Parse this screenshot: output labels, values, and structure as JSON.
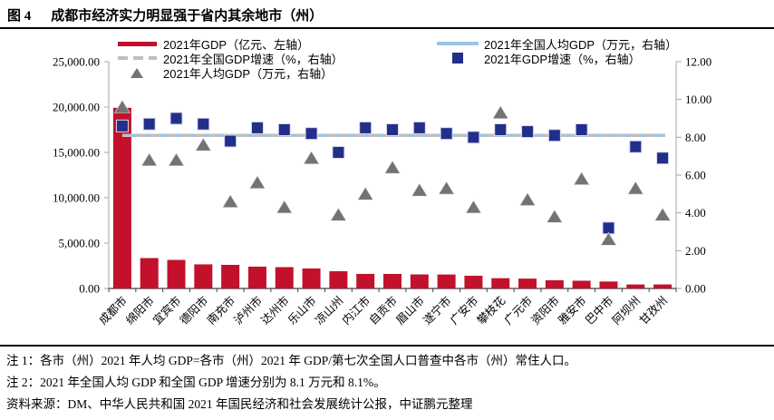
{
  "header": {
    "figure_label": "图 4",
    "title": "成都市经济实力明显强于省内其余地市（州）"
  },
  "chart_data": {
    "type": "combo",
    "categories": [
      "成都市",
      "绵阳市",
      "宜宾市",
      "德阳市",
      "南充市",
      "泸州市",
      "达州市",
      "乐山市",
      "凉山州",
      "内江市",
      "自贡市",
      "眉山市",
      "遂宁市",
      "广安市",
      "攀枝花",
      "广元市",
      "资阳市",
      "雅安市",
      "巴中市",
      "阿坝州",
      "甘孜州"
    ],
    "series": [
      {
        "name": "2021年GDP（亿元、左轴）",
        "type": "bar",
        "axis": "left",
        "color": "#C3112B",
        "values": [
          19917,
          3350,
          3148,
          2657,
          2602,
          2406,
          2352,
          2205,
          1901,
          1605,
          1601,
          1547,
          1539,
          1401,
          1133,
          1086,
          903,
          852,
          766,
          441,
          443
        ]
      },
      {
        "name": "2021年全国GDP增速（%，右轴）",
        "type": "line-dashed",
        "axis": "right",
        "color": "#BFBFBF",
        "value": 8.1
      },
      {
        "name": "2021年人均GDP（万元，右轴）",
        "type": "scatter-triangle",
        "axis": "right",
        "color": "#737373",
        "values": [
          9.6,
          6.8,
          6.8,
          7.6,
          4.6,
          5.6,
          4.3,
          6.9,
          3.9,
          5.0,
          6.4,
          5.2,
          5.3,
          4.3,
          9.3,
          4.7,
          3.8,
          5.8,
          2.6,
          5.3,
          3.9
        ]
      },
      {
        "name": "2021年全国人均GDP（万元，右轴）",
        "type": "line",
        "axis": "right",
        "color": "#9DC3E6",
        "value": 8.1
      },
      {
        "name": "2021年GDP增速（%，右轴）",
        "type": "scatter-square",
        "axis": "right",
        "color": "#232E8B",
        "values": [
          8.6,
          8.7,
          9.0,
          8.7,
          7.8,
          8.5,
          8.4,
          8.2,
          7.2,
          8.5,
          8.4,
          8.5,
          8.2,
          8.0,
          8.4,
          8.3,
          8.1,
          8.4,
          3.2,
          7.5,
          6.9
        ]
      }
    ],
    "left_axis": {
      "min": 0,
      "max": 25000,
      "ticks": [
        "0.00",
        "5,000.00",
        "10,000.00",
        "15,000.00",
        "20,000.00",
        "25,000.00"
      ]
    },
    "right_axis": {
      "min": 0,
      "max": 12,
      "ticks": [
        "0.00",
        "2.00",
        "4.00",
        "6.00",
        "8.00",
        "10.00",
        "12.00"
      ]
    },
    "grid": false,
    "legend_position": "top-inside"
  },
  "notes": [
    "注 1：各市（州）2021 年人均 GDP=各市（州）2021 年 GDP/第七次全国人口普查中各市（州）常住人口。",
    "注 2：2021 年全国人均 GDP 和全国 GDP 增速分别为 8.1 万元和 8.1%。",
    "资料来源：DM、中华人民共和国 2021 年国民经济和社会发展统计公报，中证鹏元整理"
  ],
  "colors": {
    "bar_red": "#C3112B",
    "growth_square_navy": "#232E8B",
    "national_per_capita_blue": "#9DC3E6",
    "national_growth_dash_gray": "#BFBFBF",
    "per_capita_triangle_gray": "#737373",
    "axis_gray": "#A6A6A6",
    "baseline_dark": "#404040"
  }
}
